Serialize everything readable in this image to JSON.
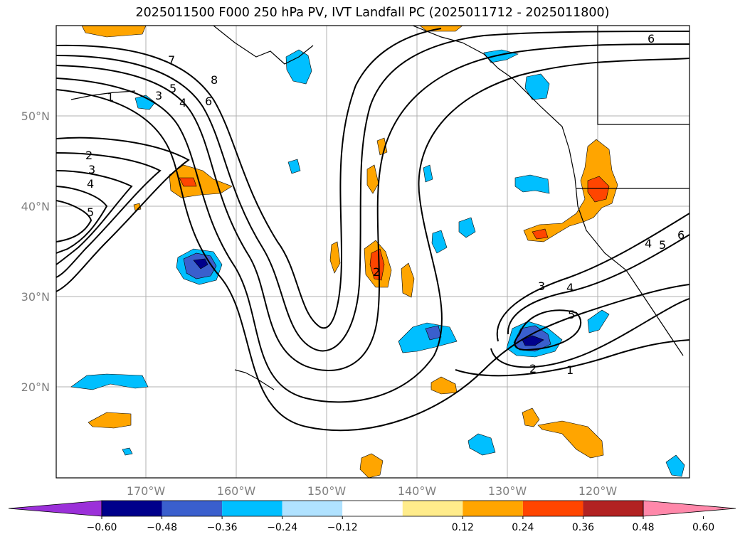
{
  "title": "2025011500 F000 250 hPa PV, IVT Landfall PC (2025011712 - 2025011800)",
  "lon_ticks": [
    "170°W",
    "160°W",
    "150°W",
    "140°W",
    "130°W",
    "120°W"
  ],
  "lat_ticks": [
    "50°N",
    "40°N",
    "30°N",
    "20°N"
  ],
  "colorbar": {
    "colors": [
      "#9b30d9",
      "#00008b",
      "#3a5fcd",
      "#00bfff",
      "#b0e2ff",
      "#ffffff",
      "#ffec8b",
      "#ffa500",
      "#ff4500",
      "#b22222",
      "#ff88aa"
    ],
    "ticks": [
      "−0.60",
      "−0.48",
      "−0.36",
      "−0.24",
      "−0.12",
      "0.12",
      "0.24",
      "0.36",
      "0.48",
      "0.60"
    ]
  },
  "contour_labels": [
    "1",
    "2",
    "3",
    "4",
    "5",
    "6",
    "7",
    "8"
  ]
}
